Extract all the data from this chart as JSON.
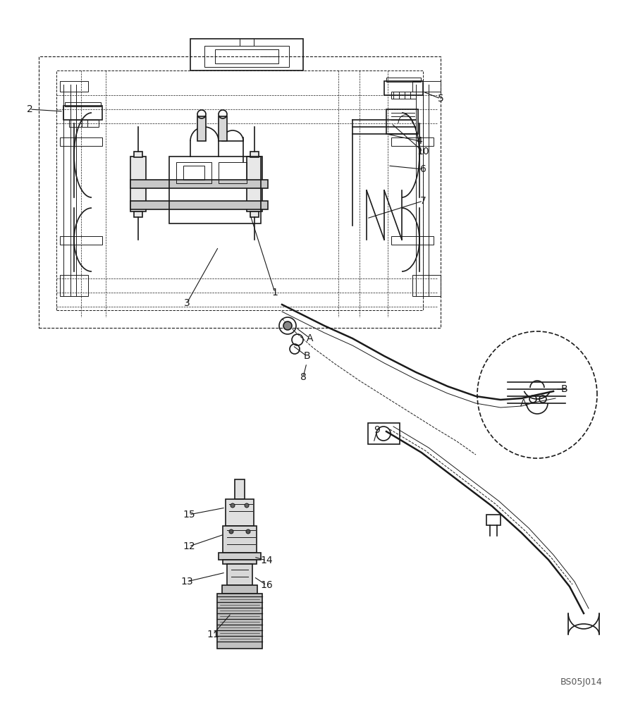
{
  "bg_color": "#ffffff",
  "line_color": "#1a1a1a",
  "label_color": "#1a1a1a",
  "watermark": "BS05J014",
  "callouts": [
    [
      42,
      155,
      90,
      158,
      "2"
    ],
    [
      265,
      430,
      310,
      350,
      "3"
    ],
    [
      390,
      415,
      355,
      305,
      "1"
    ],
    [
      595,
      200,
      548,
      190,
      "4"
    ],
    [
      625,
      140,
      600,
      130,
      "5"
    ],
    [
      600,
      240,
      550,
      235,
      "6"
    ],
    [
      600,
      285,
      520,
      310,
      "7"
    ],
    [
      600,
      215,
      555,
      175,
      "10"
    ],
    [
      440,
      480,
      420,
      465,
      "A"
    ],
    [
      435,
      505,
      415,
      490,
      "B"
    ],
    [
      430,
      535,
      435,
      515,
      "8"
    ],
    [
      535,
      610,
      530,
      628,
      "9"
    ],
    [
      743,
      572,
      752,
      572,
      "A"
    ],
    [
      800,
      552,
      788,
      552,
      "B"
    ],
    [
      268,
      730,
      320,
      720,
      "15"
    ],
    [
      268,
      775,
      318,
      758,
      "12"
    ],
    [
      265,
      825,
      320,
      812,
      "13"
    ],
    [
      378,
      795,
      360,
      790,
      "14"
    ],
    [
      378,
      830,
      360,
      818,
      "16"
    ],
    [
      302,
      900,
      328,
      870,
      "11"
    ]
  ]
}
